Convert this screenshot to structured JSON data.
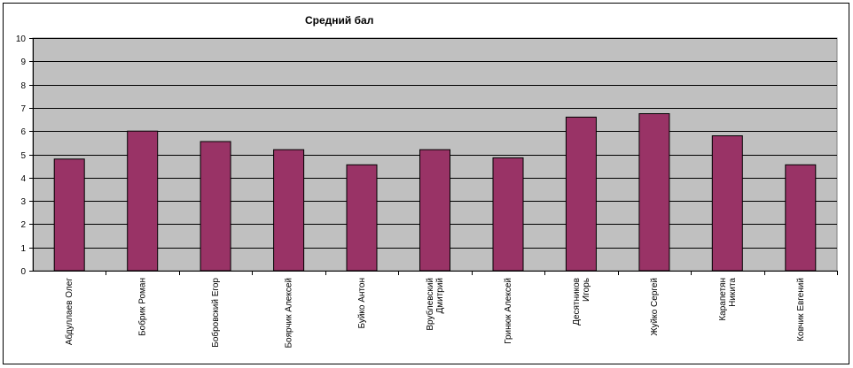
{
  "chart_data": {
    "type": "bar",
    "title": "Средний бал",
    "xlabel": "",
    "ylabel": "",
    "ylim": [
      0,
      10
    ],
    "yticks": [
      0,
      1,
      2,
      3,
      4,
      5,
      6,
      7,
      8,
      9,
      10
    ],
    "grid": true,
    "legend": "none",
    "categories": [
      [
        "Абдуллаев Олег"
      ],
      [
        "Бобрик Роман"
      ],
      [
        "Бобровский Егор"
      ],
      [
        "Боярчик Алексей"
      ],
      [
        "Буйко Антон"
      ],
      [
        "Врублевский",
        "Дмитрий"
      ],
      [
        "Гринюк Алексей"
      ],
      [
        "Десятников",
        "Игорь"
      ],
      [
        "Жуйко Сергей"
      ],
      [
        "Карапетян",
        "Никита"
      ],
      [
        "Ковчик Евгений"
      ]
    ],
    "values": [
      4.8,
      6.0,
      5.55,
      5.2,
      4.55,
      5.2,
      4.85,
      6.6,
      6.75,
      5.8,
      4.55
    ],
    "colors": {
      "bar": "#993366",
      "plot_background": "#c0c0c0",
      "gridline": "#000000"
    }
  }
}
